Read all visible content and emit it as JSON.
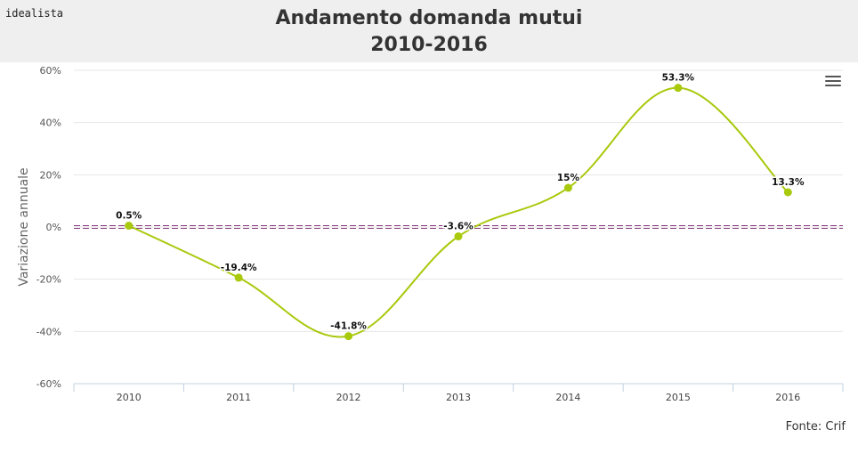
{
  "brand": "idealista",
  "title_line1": "Andamento domanda mutui",
  "title_line2": "2010-2016",
  "source": "Fonte: Crif",
  "menu_icon": "hamburger-menu-icon",
  "colors": {
    "line": "#a8c90c",
    "zero_line": "#7a2a6e",
    "header_bg": "#efefef"
  },
  "chart_data": {
    "type": "line",
    "title": "Andamento domanda mutui 2010-2016",
    "xlabel": "",
    "ylabel": "Variazione annuale",
    "categories": [
      "2010",
      "2011",
      "2012",
      "2013",
      "2014",
      "2015",
      "2016"
    ],
    "series": [
      {
        "values": [
          0.5,
          -19.4,
          -41.8,
          -3.6,
          15,
          53.3,
          13.3
        ]
      }
    ],
    "data_labels": [
      "0.5%",
      "-19.4%",
      "-41.8%",
      "-3.6%",
      "15%",
      "53.3%",
      "13.3%"
    ],
    "yticks": [
      60,
      40,
      20,
      0,
      -20,
      -40,
      -60
    ],
    "ytick_labels": [
      "60%",
      "40%",
      "20%",
      "0%",
      "-20%",
      "-40%",
      "-60%"
    ],
    "ylim": [
      -60,
      60
    ],
    "grid": true,
    "reference_line": 0,
    "smooth": true
  }
}
